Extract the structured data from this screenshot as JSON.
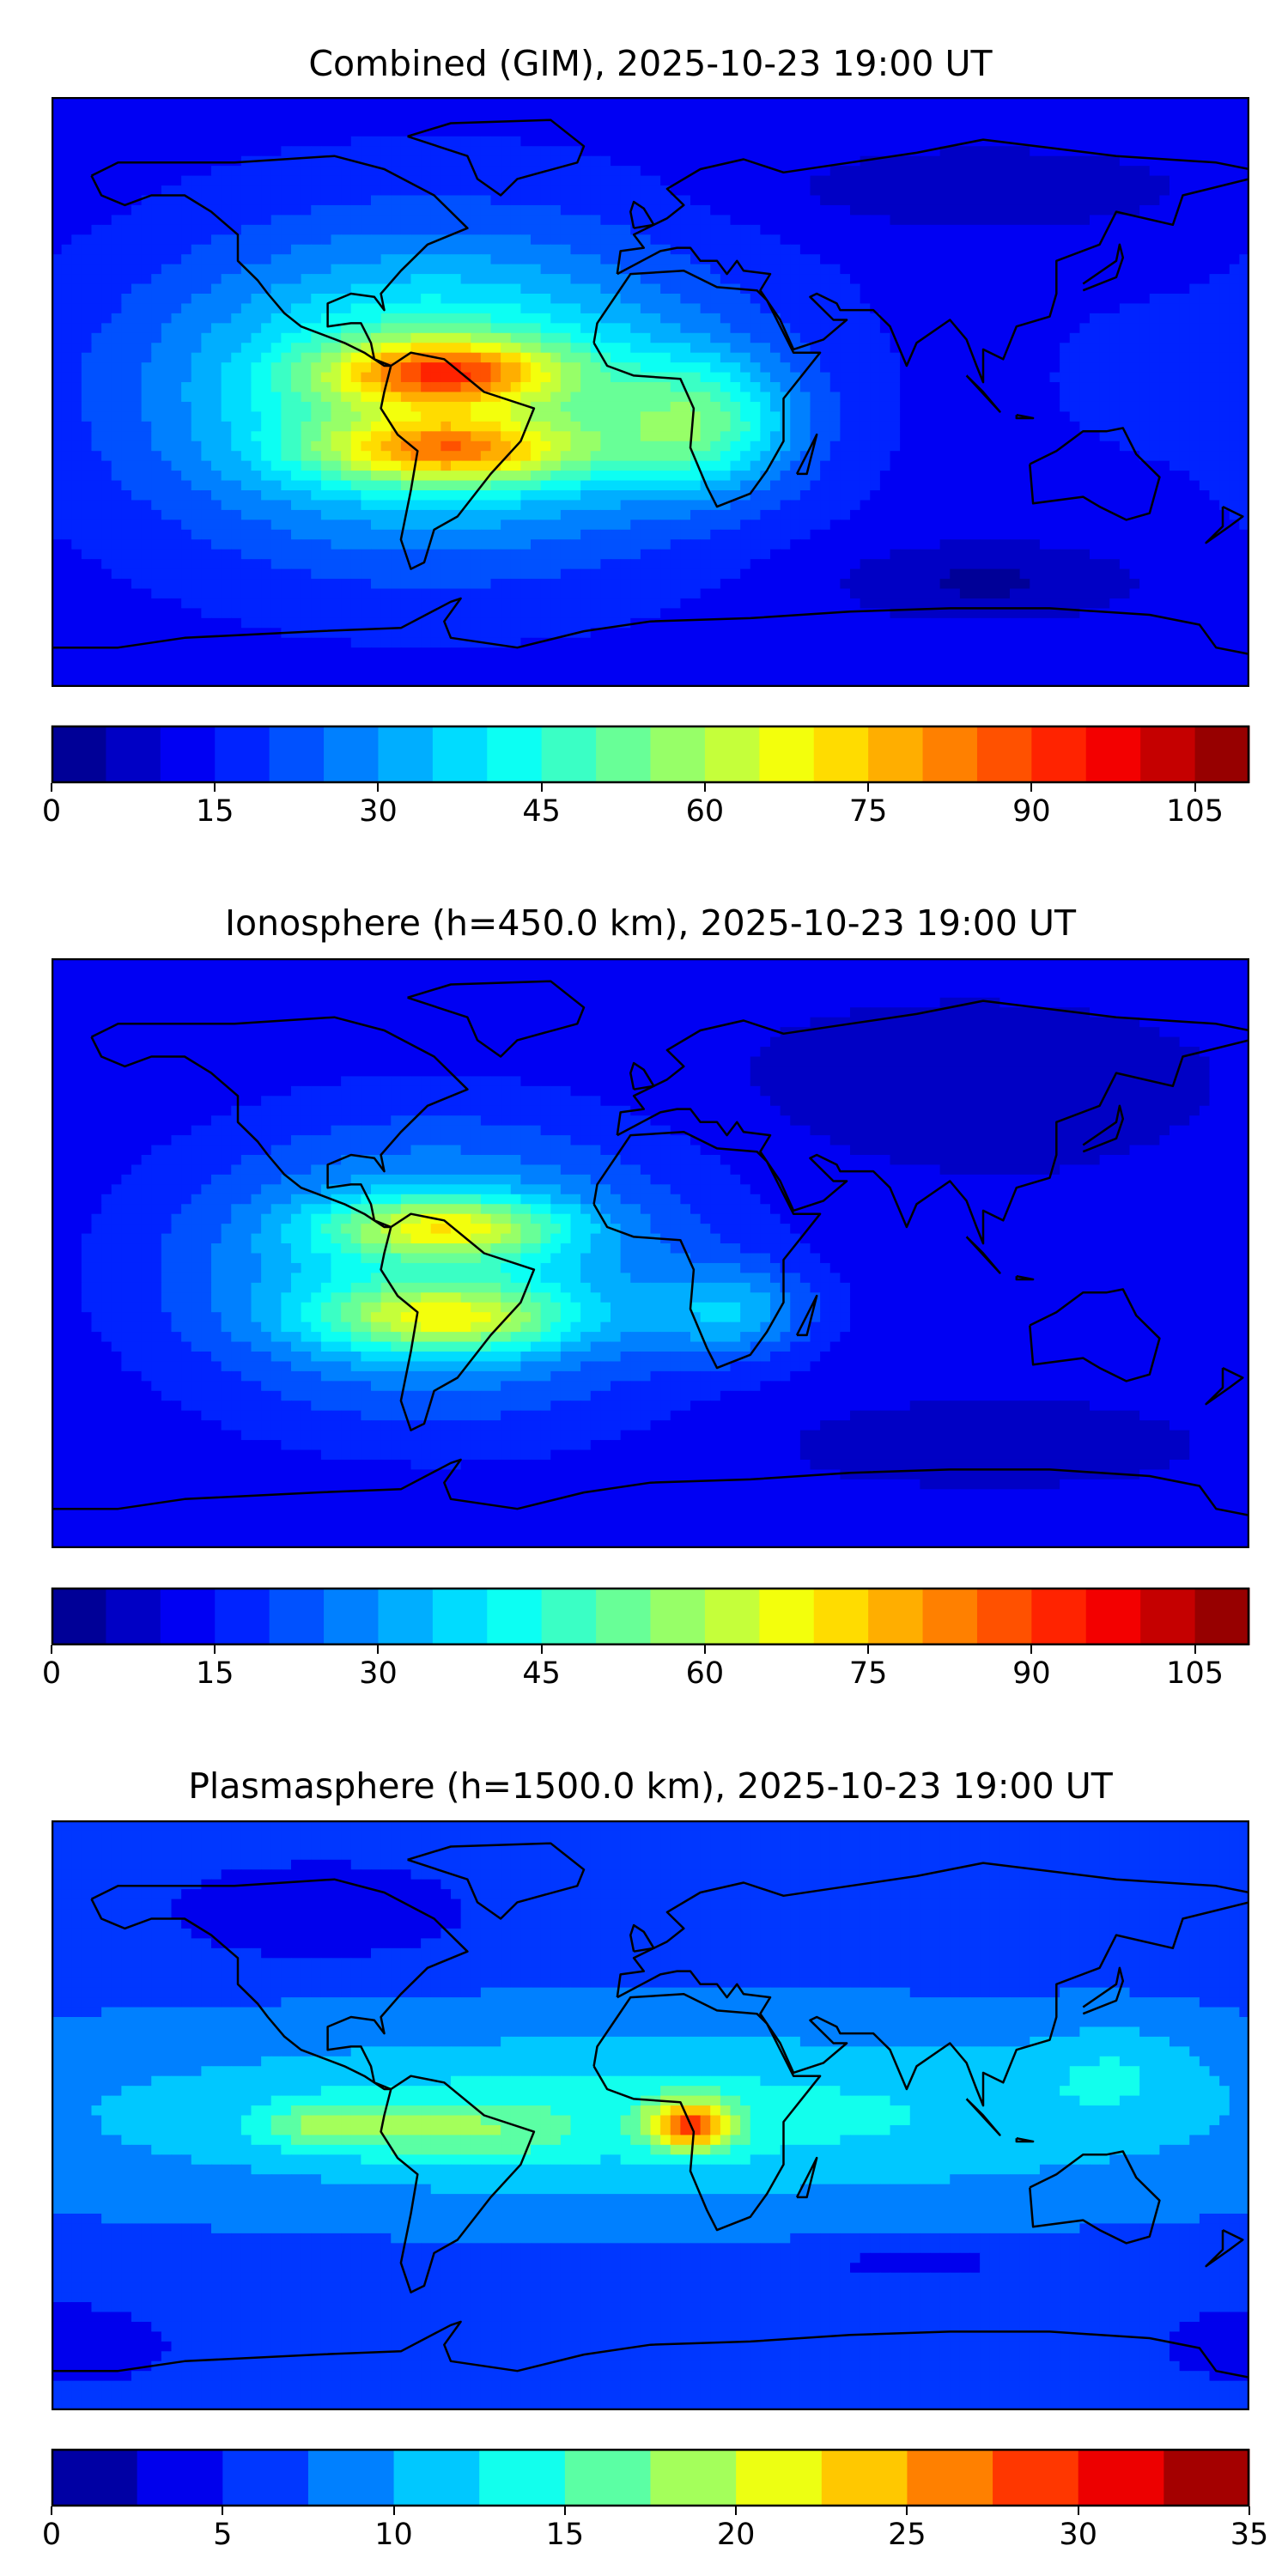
{
  "chart_data": [
    {
      "type": "heatmap",
      "title": "Combined (GIM), 2025-10-23 19:00 UT",
      "xlim": [
        -180,
        180
      ],
      "ylim": [
        -90,
        90
      ],
      "levels": {
        "min": 0,
        "max": 110,
        "step": 5
      },
      "colorbar_ticks": [
        "0",
        "15",
        "30",
        "45",
        "60",
        "75",
        "90",
        "105"
      ],
      "colorbar_tick_values": [
        0,
        15,
        30,
        45,
        60,
        75,
        90,
        105
      ],
      "field": {
        "base": 13,
        "features": [
          {
            "lon": -65,
            "lat": 0,
            "value": 40,
            "sx": 80,
            "sy": 45
          },
          {
            "lon": -62,
            "lat": 6,
            "value": 40,
            "sx": 35,
            "sy": 10
          },
          {
            "lon": -60,
            "lat": -18,
            "value": 38,
            "sx": 40,
            "sy": 10
          },
          {
            "lon": 15,
            "lat": -10,
            "value": 28,
            "sx": 28,
            "sy": 20
          },
          {
            "lon": 100,
            "lat": 62,
            "value": -8,
            "sx": 60,
            "sy": 12
          },
          {
            "lon": 100,
            "lat": -58,
            "value": -9,
            "sx": 45,
            "sy": 12
          },
          {
            "lon": 145,
            "lat": 5,
            "value": 4,
            "sx": 25,
            "sy": 20
          }
        ]
      }
    },
    {
      "type": "heatmap",
      "title": "Ionosphere  (h=450.0 km), 2025-10-23 19:00 UT",
      "xlim": [
        -180,
        180
      ],
      "ylim": [
        -90,
        90
      ],
      "levels": {
        "min": 0,
        "max": 110,
        "step": 5
      },
      "colorbar_ticks": [
        "0",
        "15",
        "30",
        "45",
        "60",
        "75",
        "90",
        "105"
      ],
      "colorbar_tick_values": [
        0,
        15,
        30,
        45,
        60,
        75,
        90,
        105
      ],
      "field": {
        "base": 11,
        "features": [
          {
            "lon": -65,
            "lat": -5,
            "value": 30,
            "sx": 75,
            "sy": 42
          },
          {
            "lon": -62,
            "lat": 8,
            "value": 32,
            "sx": 35,
            "sy": 9
          },
          {
            "lon": -62,
            "lat": -20,
            "value": 32,
            "sx": 38,
            "sy": 10
          },
          {
            "lon": 25,
            "lat": -18,
            "value": 18,
            "sx": 25,
            "sy": 14
          },
          {
            "lon": 95,
            "lat": 50,
            "value": -6,
            "sx": 60,
            "sy": 20
          },
          {
            "lon": 100,
            "lat": -58,
            "value": -6,
            "sx": 50,
            "sy": 10
          }
        ]
      }
    },
    {
      "type": "heatmap",
      "title": "Plasmasphere (h=1500.0 km), 2025-10-23 19:00 UT",
      "xlim": [
        -180,
        180
      ],
      "ylim": [
        -90,
        90
      ],
      "levels": {
        "min": 0,
        "max": 35,
        "step": 2.5
      },
      "colorbar_ticks": [
        "0",
        "5",
        "10",
        "15",
        "20",
        "25",
        "30",
        "35"
      ],
      "colorbar_tick_values": [
        0,
        5,
        10,
        15,
        20,
        25,
        30,
        35
      ],
      "field": {
        "base": 6.5,
        "features": [
          {
            "lon": 0,
            "lat": 0,
            "value": 7,
            "sx": 200,
            "sy": 28
          },
          {
            "lon": 12,
            "lat": -3,
            "value": 16,
            "sx": 13,
            "sy": 8
          },
          {
            "lon": -95,
            "lat": -3,
            "value": 7,
            "sx": 22,
            "sy": 7
          },
          {
            "lon": -55,
            "lat": -5,
            "value": 5,
            "sx": 30,
            "sy": 10
          },
          {
            "lon": 140,
            "lat": 15,
            "value": 3,
            "sx": 25,
            "sy": 15
          },
          {
            "lon": -100,
            "lat": 62,
            "value": -4,
            "sx": 45,
            "sy": 15
          },
          {
            "lon": -175,
            "lat": -70,
            "value": -4,
            "sx": 30,
            "sy": 12
          },
          {
            "lon": 80,
            "lat": -45,
            "value": -3,
            "sx": 30,
            "sy": 6
          }
        ]
      }
    }
  ]
}
